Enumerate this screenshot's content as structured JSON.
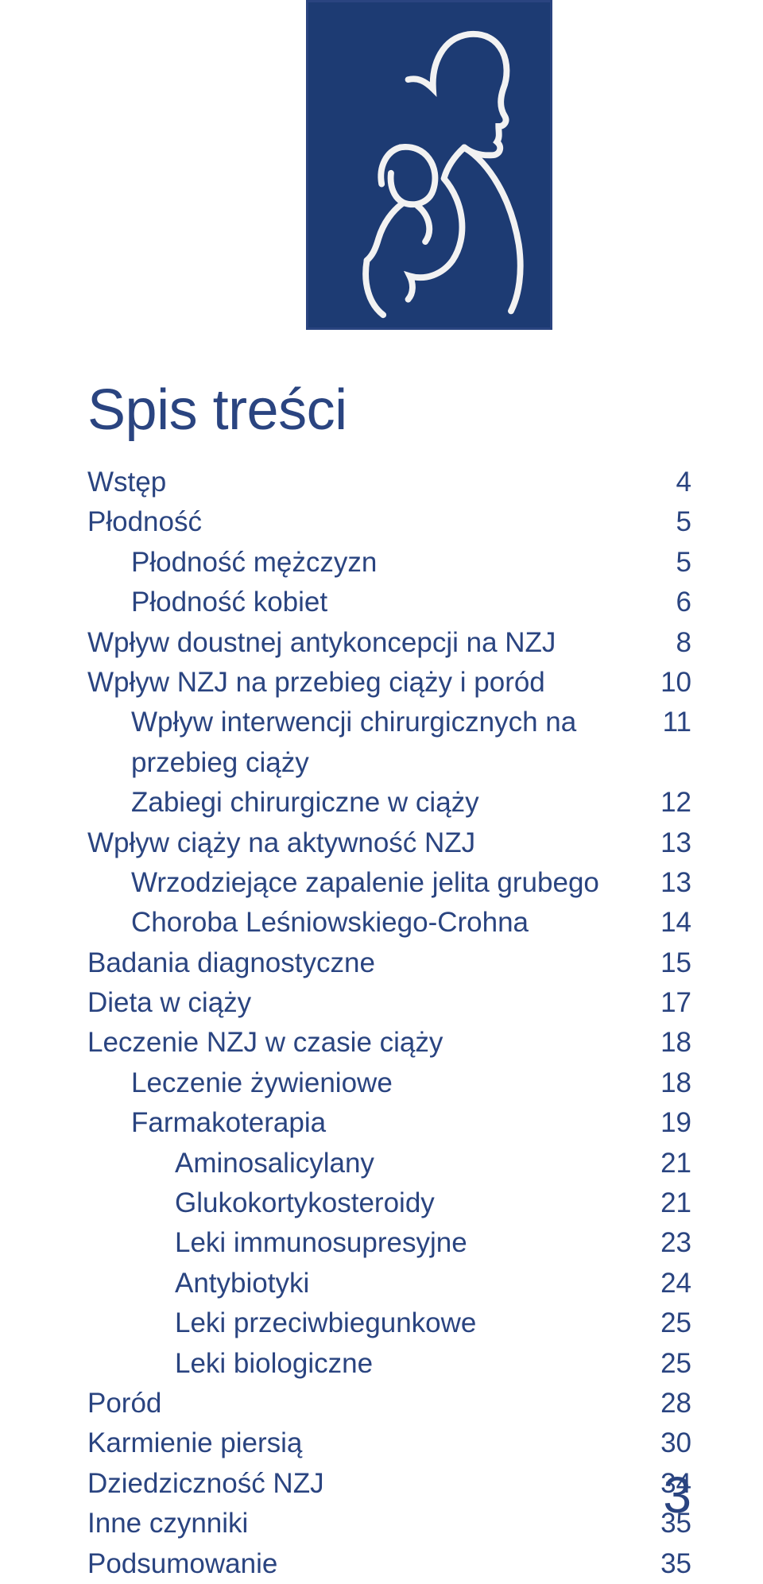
{
  "colors": {
    "text": "#2a4480",
    "logo_bg": "#1d3b73",
    "logo_stroke": "#f2f2f2",
    "page_bg": "#ffffff"
  },
  "typography": {
    "title_fontsize_pt": 54,
    "body_fontsize_pt": 26,
    "footer_fontsize_pt": 48,
    "font_family": "Myriad Pro / sans-serif"
  },
  "title": "Spis treści",
  "toc": [
    {
      "label": "Wstęp",
      "page": "4",
      "indent": 0
    },
    {
      "label": "Płodność",
      "page": "5",
      "indent": 0
    },
    {
      "label": "Płodność mężczyzn",
      "page": "5",
      "indent": 1
    },
    {
      "label": "Płodność kobiet",
      "page": "6",
      "indent": 1
    },
    {
      "label": "Wpływ doustnej antykoncepcji na NZJ",
      "page": "8",
      "indent": 0
    },
    {
      "label": "Wpływ NZJ na przebieg ciąży i poród",
      "page": "10",
      "indent": 0
    },
    {
      "label": "Wpływ interwencji chirurgicznych na przebieg ciąży",
      "page": "11",
      "indent": 1
    },
    {
      "label": "Zabiegi chirurgiczne w ciąży",
      "page": "12",
      "indent": 1
    },
    {
      "label": "Wpływ ciąży na aktywność NZJ",
      "page": "13",
      "indent": 0
    },
    {
      "label": "Wrzodziejące zapalenie jelita grubego",
      "page": "13",
      "indent": 1
    },
    {
      "label": "Choroba Leśniowskiego-Crohna",
      "page": "14",
      "indent": 1
    },
    {
      "label": "Badania diagnostyczne",
      "page": "15",
      "indent": 0
    },
    {
      "label": "Dieta w ciąży",
      "page": "17",
      "indent": 0
    },
    {
      "label": "Leczenie NZJ w czasie ciąży",
      "page": "18",
      "indent": 0
    },
    {
      "label": "Leczenie żywieniowe",
      "page": "18",
      "indent": 1
    },
    {
      "label": "Farmakoterapia",
      "page": "19",
      "indent": 1
    },
    {
      "label": "Aminosalicylany",
      "page": "21",
      "indent": 2
    },
    {
      "label": "Glukokortykosteroidy",
      "page": "21",
      "indent": 2
    },
    {
      "label": "Leki immunosupresyjne",
      "page": "23",
      "indent": 2
    },
    {
      "label": "Antybiotyki",
      "page": "24",
      "indent": 2
    },
    {
      "label": "Leki przeciwbiegunkowe",
      "page": "25",
      "indent": 2
    },
    {
      "label": "Leki biologiczne",
      "page": "25",
      "indent": 2
    },
    {
      "label": "Poród",
      "page": "28",
      "indent": 0
    },
    {
      "label": "Karmienie piersią",
      "page": "30",
      "indent": 0
    },
    {
      "label": "Dziedziczność NZJ",
      "page": "34",
      "indent": 0
    },
    {
      "label": "Inne czynniki",
      "page": "35",
      "indent": 0
    },
    {
      "label": "Podsumowanie",
      "page": "35",
      "indent": 0
    }
  ],
  "footer_page_number": "3"
}
